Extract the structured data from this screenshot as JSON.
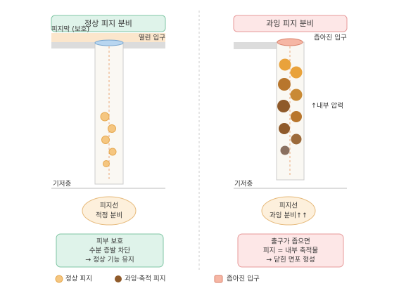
{
  "left": {
    "title": "정상 피지 분비",
    "film_label": "피지막 (보호)",
    "opening_label": "열린 입구",
    "base_label": "기저층",
    "gland": [
      "피지선",
      "적정 분비"
    ],
    "box": [
      "피부 보호",
      "수분 증발 차단",
      "→ 정상 기능 유지"
    ]
  },
  "right": {
    "title": "과잉 피지 분비",
    "opening_label": "좁아진 입구",
    "pressure_label": "↑내부 압력",
    "base_label": "기저층",
    "gland": [
      "피지선",
      "과잉 분비↑↑"
    ],
    "box": [
      "출구가 좁으면",
      "피지 = 내부 축적물",
      "→ 닫힌 면포 형성"
    ]
  },
  "legend": [
    "정상 피지",
    "과잉·축적 피지",
    "좁아진 입구"
  ]
}
